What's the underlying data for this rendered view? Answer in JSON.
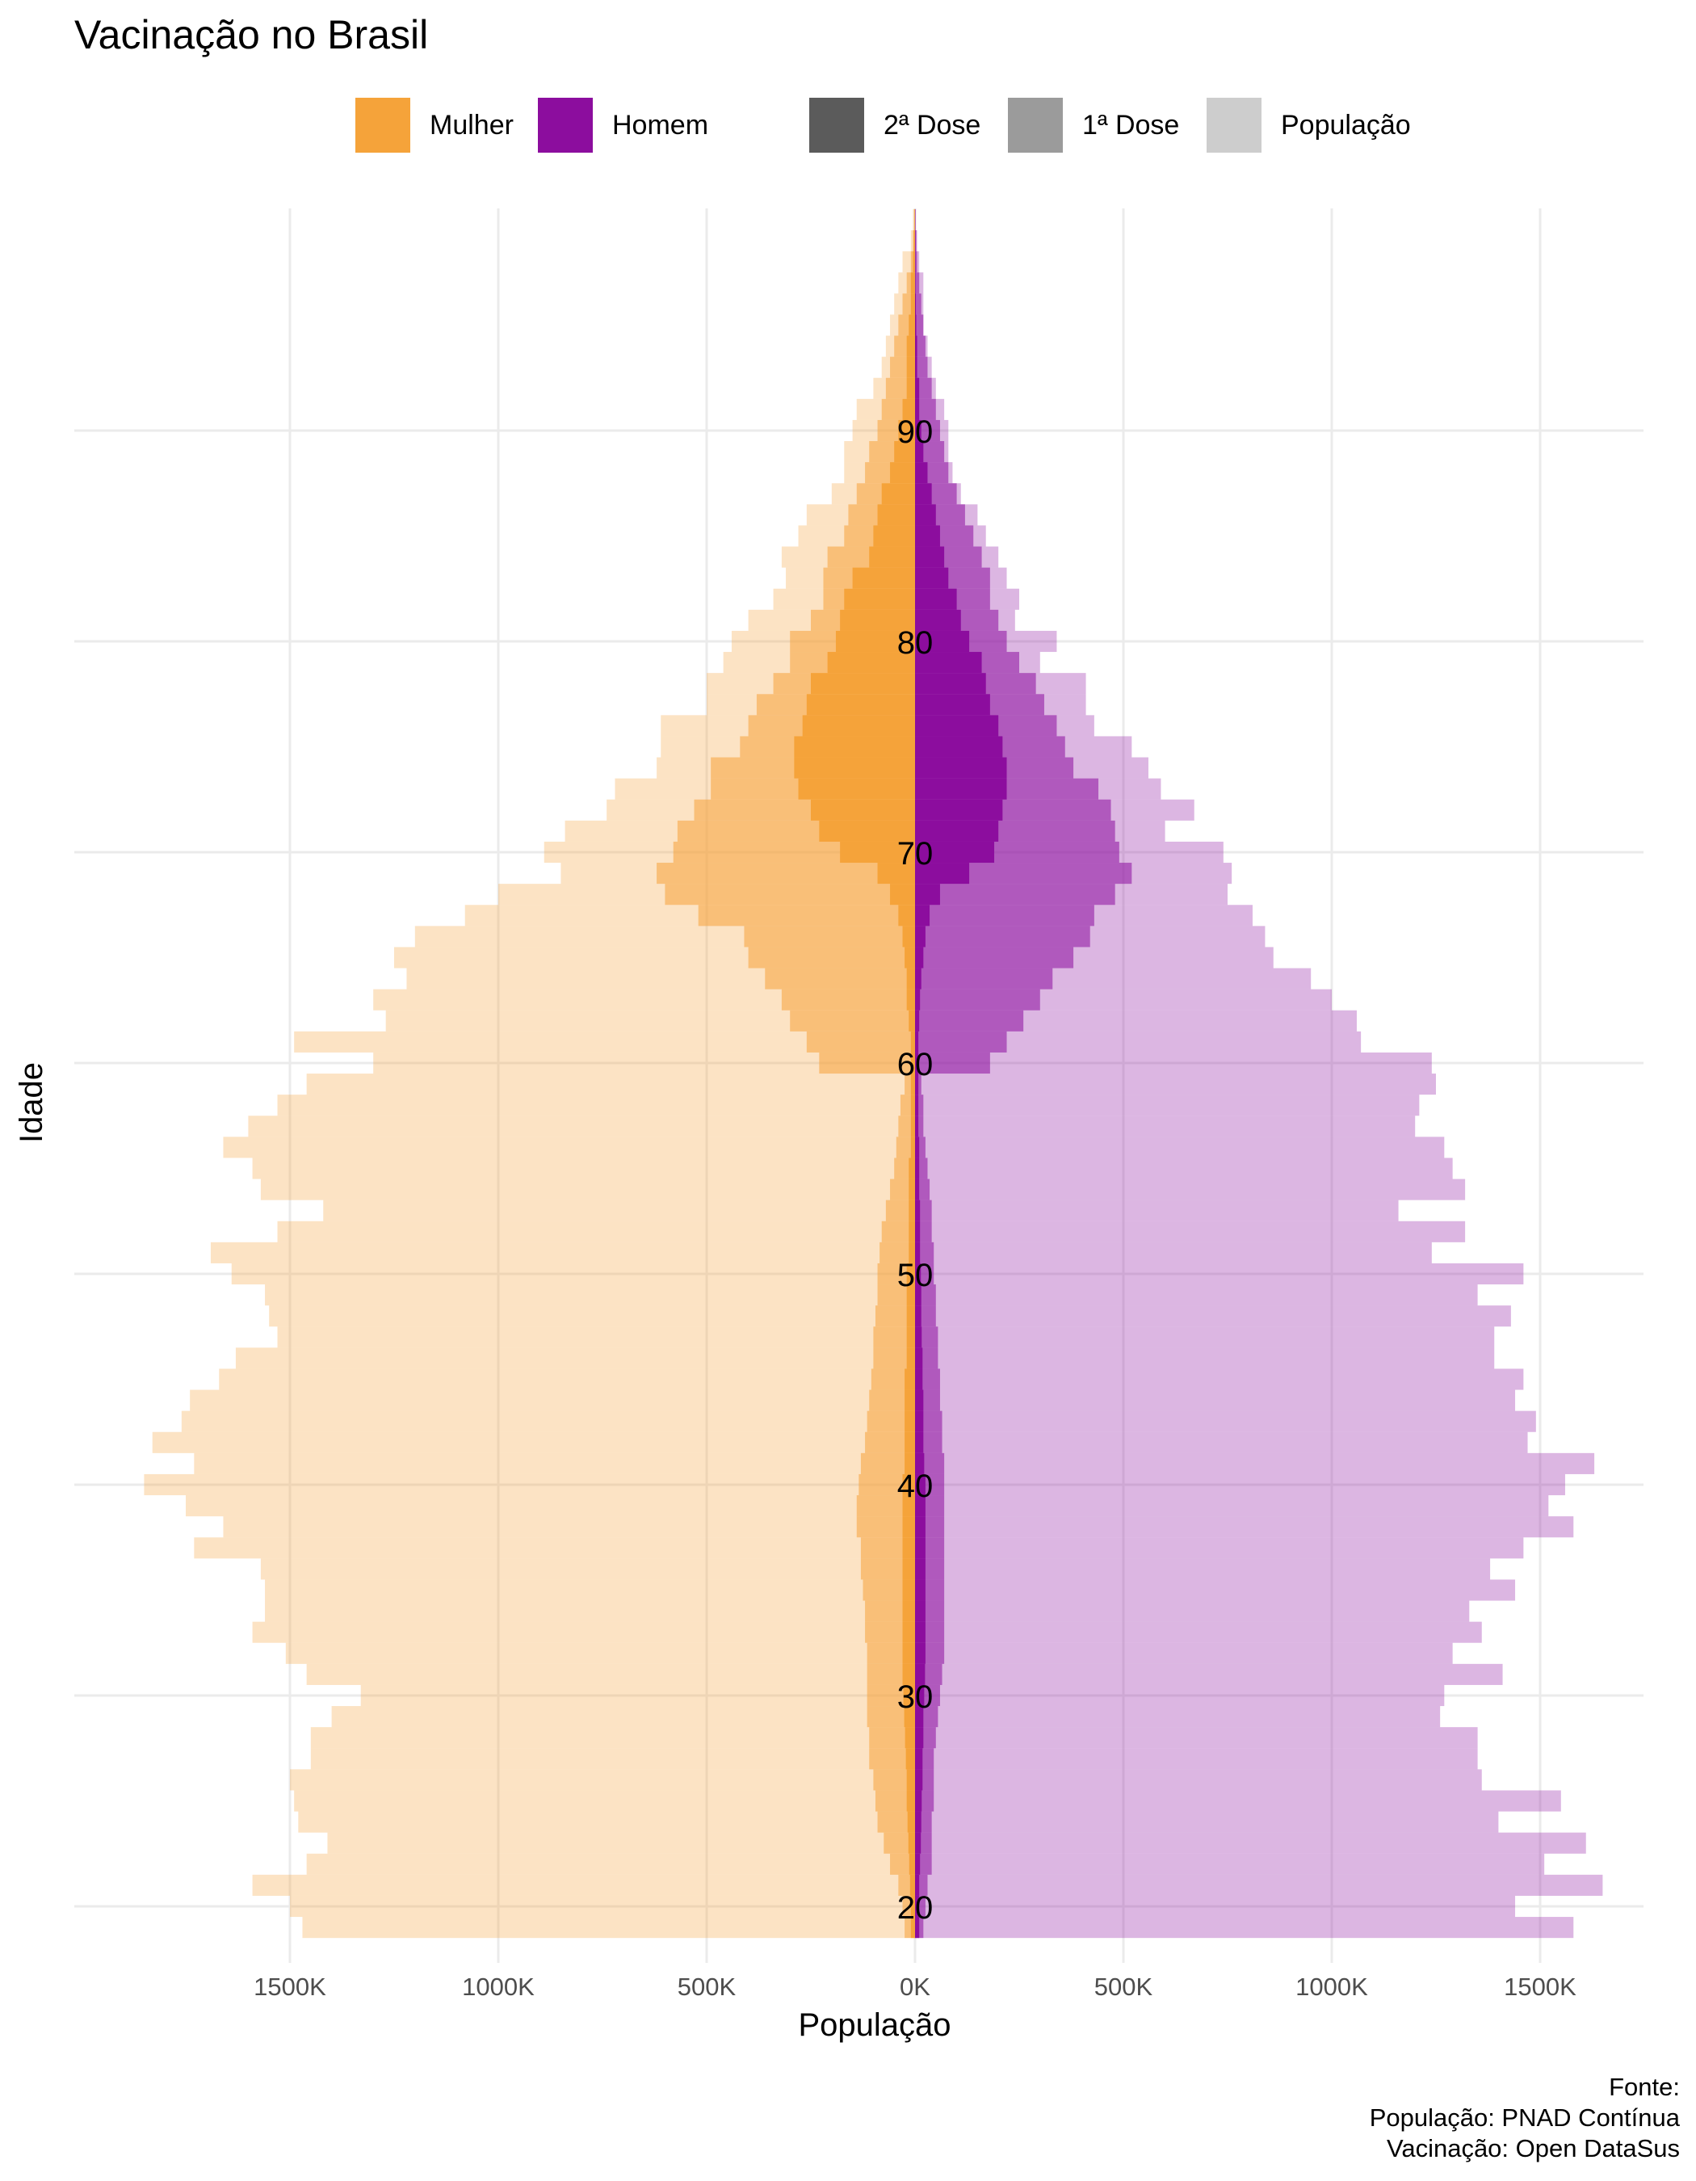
{
  "chart_data": {
    "type": "bar",
    "title": "Vacinação no Brasil",
    "xlabel": "População",
    "ylabel": "Idade",
    "xlim": [
      -1850000,
      1700000
    ],
    "ylim": [
      18.5,
      93
    ],
    "x_ticks": [
      -1500000,
      -1000000,
      -500000,
      0,
      500000,
      1000000,
      1500000
    ],
    "x_tick_labels": [
      "1500K",
      "1000K",
      "500K",
      "0K",
      "500K",
      "1000K",
      "1500K"
    ],
    "y_ticks": [
      20,
      30,
      40,
      50,
      60,
      70,
      80,
      90
    ],
    "y_tick_labels": [
      "20",
      "30",
      "40",
      "50",
      "60",
      "70",
      "80",
      "90"
    ],
    "grid": true,
    "legend_position": "top",
    "legend": [
      {
        "name": "Mulher",
        "color": "#F5A33A"
      },
      {
        "name": "Homem",
        "color": "#8C0D9E"
      },
      {
        "name": "2ª Dose",
        "color": "#5B5B5B"
      },
      {
        "name": "1ª Dose",
        "color": "#9B9B9B"
      },
      {
        "name": "População",
        "color": "#CDCDCD"
      }
    ],
    "ages": [
      19,
      20,
      21,
      22,
      23,
      24,
      25,
      26,
      27,
      28,
      29,
      30,
      31,
      32,
      33,
      34,
      35,
      36,
      37,
      38,
      39,
      40,
      41,
      42,
      43,
      44,
      45,
      46,
      47,
      48,
      49,
      50,
      51,
      52,
      53,
      54,
      55,
      56,
      57,
      58,
      59,
      60,
      61,
      62,
      63,
      64,
      65,
      66,
      67,
      68,
      69,
      70,
      71,
      72,
      73,
      74,
      75,
      76,
      77,
      78,
      79,
      80,
      81,
      82,
      83,
      84,
      85,
      86,
      87,
      88,
      89,
      90,
      91,
      92,
      93,
      94,
      95,
      96,
      97,
      98,
      99,
      100
    ],
    "series": [
      {
        "name": "População",
        "group": "Mulher",
        "values": [
          1470000,
          1500000,
          1590000,
          1460000,
          1410000,
          1480000,
          1490000,
          1500000,
          1450000,
          1450000,
          1400000,
          1330000,
          1460000,
          1510000,
          1590000,
          1560000,
          1560000,
          1570000,
          1730000,
          1660000,
          1750000,
          1850000,
          1730000,
          1830000,
          1760000,
          1740000,
          1670000,
          1630000,
          1530000,
          1550000,
          1560000,
          1640000,
          1690000,
          1530000,
          1420000,
          1570000,
          1590000,
          1660000,
          1600000,
          1530000,
          1460000,
          1300000,
          1490000,
          1270000,
          1300000,
          1220000,
          1250000,
          1200000,
          1080000,
          1000000,
          850000,
          890000,
          840000,
          740000,
          720000,
          620000,
          610000,
          610000,
          500000,
          500000,
          460000,
          440000,
          400000,
          340000,
          310000,
          320000,
          280000,
          260000,
          200000,
          170000,
          170000,
          150000,
          140000,
          100000,
          80000,
          70000,
          60000,
          50000,
          40000,
          30000,
          10000,
          5000
        ]
      },
      {
        "name": "1ª Dose",
        "group": "Mulher",
        "values": [
          25000,
          30000,
          40000,
          60000,
          75000,
          90000,
          95000,
          100000,
          110000,
          110000,
          115000,
          115000,
          115000,
          115000,
          120000,
          120000,
          125000,
          130000,
          130000,
          140000,
          140000,
          135000,
          130000,
          120000,
          115000,
          110000,
          105000,
          100000,
          100000,
          95000,
          90000,
          90000,
          85000,
          80000,
          70000,
          60000,
          50000,
          45000,
          40000,
          35000,
          25000,
          230000,
          260000,
          300000,
          320000,
          360000,
          400000,
          410000,
          520000,
          600000,
          620000,
          580000,
          570000,
          530000,
          490000,
          490000,
          420000,
          400000,
          380000,
          340000,
          300000,
          300000,
          250000,
          220000,
          220000,
          210000,
          170000,
          160000,
          140000,
          120000,
          110000,
          90000,
          80000,
          70000,
          60000,
          50000,
          40000,
          30000,
          20000,
          10000,
          5000,
          2000
        ]
      },
      {
        "name": "2ª Dose",
        "group": "Mulher",
        "values": [
          10000,
          10000,
          12000,
          14000,
          16000,
          18000,
          20000,
          20000,
          22000,
          24000,
          26000,
          28000,
          30000,
          30000,
          30000,
          30000,
          30000,
          30000,
          30000,
          30000,
          30000,
          30000,
          25000,
          25000,
          25000,
          25000,
          25000,
          20000,
          20000,
          20000,
          20000,
          20000,
          15000,
          15000,
          15000,
          15000,
          15000,
          10000,
          10000,
          10000,
          10000,
          10000,
          10000,
          15000,
          20000,
          20000,
          25000,
          30000,
          40000,
          60000,
          90000,
          180000,
          230000,
          250000,
          280000,
          290000,
          290000,
          270000,
          260000,
          250000,
          210000,
          190000,
          180000,
          170000,
          150000,
          110000,
          100000,
          90000,
          80000,
          60000,
          50000,
          40000,
          30000,
          20000,
          20000,
          20000,
          15000,
          10000,
          10000,
          5000,
          3000,
          1000
        ]
      },
      {
        "name": "População",
        "group": "Homem",
        "values": [
          1580000,
          1440000,
          1650000,
          1510000,
          1610000,
          1400000,
          1550000,
          1360000,
          1350000,
          1350000,
          1260000,
          1270000,
          1410000,
          1290000,
          1360000,
          1330000,
          1440000,
          1380000,
          1460000,
          1580000,
          1520000,
          1560000,
          1630000,
          1470000,
          1490000,
          1440000,
          1460000,
          1390000,
          1390000,
          1430000,
          1350000,
          1460000,
          1240000,
          1320000,
          1160000,
          1320000,
          1290000,
          1270000,
          1200000,
          1210000,
          1250000,
          1240000,
          1070000,
          1060000,
          1000000,
          950000,
          860000,
          840000,
          810000,
          750000,
          760000,
          740000,
          600000,
          670000,
          590000,
          560000,
          520000,
          430000,
          410000,
          410000,
          300000,
          340000,
          240000,
          250000,
          220000,
          200000,
          170000,
          150000,
          110000,
          90000,
          80000,
          80000,
          70000,
          50000,
          40000,
          30000,
          20000,
          20000,
          20000,
          10000,
          5000,
          2000
        ]
      },
      {
        "name": "1ª Dose",
        "group": "Homem",
        "values": [
          20000,
          25000,
          30000,
          40000,
          40000,
          40000,
          45000,
          45000,
          45000,
          50000,
          55000,
          60000,
          65000,
          70000,
          70000,
          70000,
          70000,
          70000,
          70000,
          70000,
          70000,
          70000,
          70000,
          65000,
          65000,
          60000,
          60000,
          55000,
          55000,
          50000,
          50000,
          45000,
          45000,
          40000,
          40000,
          35000,
          30000,
          25000,
          20000,
          20000,
          15000,
          180000,
          220000,
          260000,
          300000,
          330000,
          380000,
          420000,
          430000,
          480000,
          520000,
          490000,
          480000,
          470000,
          440000,
          380000,
          360000,
          340000,
          310000,
          290000,
          250000,
          220000,
          200000,
          180000,
          180000,
          160000,
          140000,
          120000,
          100000,
          80000,
          70000,
          60000,
          50000,
          40000,
          30000,
          25000,
          20000,
          15000,
          10000,
          5000,
          3000,
          1000
        ]
      },
      {
        "name": "2ª Dose",
        "group": "Homem",
        "values": [
          10000,
          10000,
          10000,
          12000,
          14000,
          15000,
          16000,
          18000,
          18000,
          20000,
          20000,
          22000,
          24000,
          25000,
          25000,
          25000,
          25000,
          25000,
          25000,
          25000,
          25000,
          25000,
          22000,
          20000,
          20000,
          20000,
          18000,
          18000,
          16000,
          15000,
          15000,
          14000,
          12000,
          12000,
          12000,
          10000,
          10000,
          10000,
          8000,
          8000,
          8000,
          8000,
          8000,
          10000,
          12000,
          15000,
          20000,
          25000,
          35000,
          60000,
          130000,
          190000,
          200000,
          210000,
          220000,
          220000,
          210000,
          200000,
          180000,
          170000,
          160000,
          130000,
          110000,
          100000,
          80000,
          70000,
          60000,
          50000,
          40000,
          30000,
          20000,
          15000,
          10000,
          10000,
          5000,
          5000,
          3000,
          2000,
          1000,
          1000,
          1000,
          500
        ]
      }
    ]
  },
  "source": {
    "line1": "Fonte:",
    "line2": "População: PNAD Contínua",
    "line3": "Vacinação: Open DataSus"
  }
}
